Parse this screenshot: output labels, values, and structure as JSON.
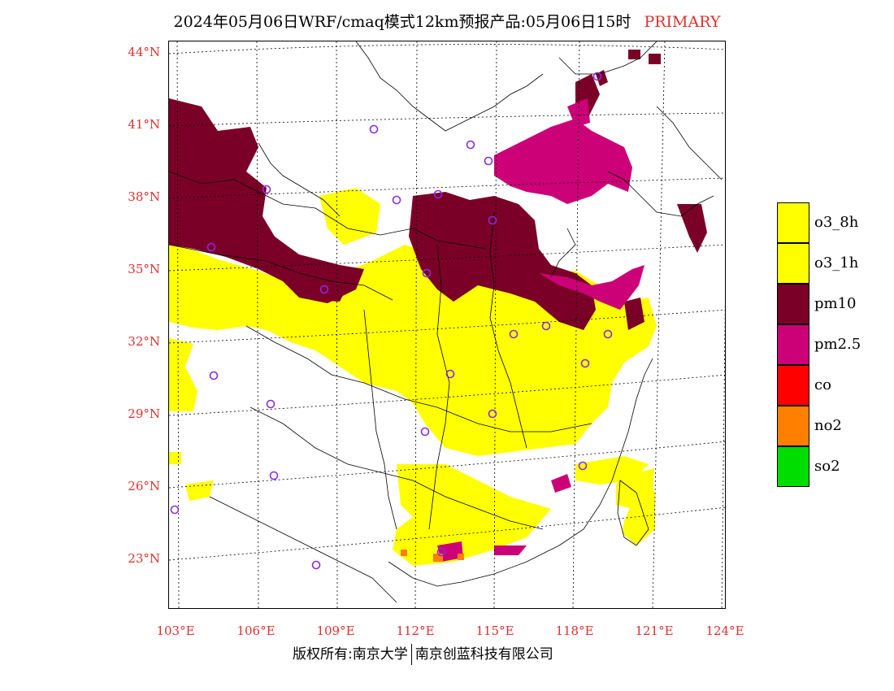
{
  "title": {
    "main": "2024年05月06日WRF/cmaq模式12km预报产品:05月06日15时",
    "tag": "PRIMARY"
  },
  "axes": {
    "latitude_labels": [
      "44°N",
      "41°N",
      "38°N",
      "35°N",
      "32°N",
      "29°N",
      "26°N",
      "23°N"
    ],
    "longitude_labels": [
      "103°E",
      "106°E",
      "109°E",
      "112°E",
      "115°E",
      "118°E",
      "121°E",
      "124°E"
    ]
  },
  "legend": {
    "items": [
      {
        "label": "o3_8h",
        "color": "#ffff00"
      },
      {
        "label": "o3_1h",
        "color": "#ffff00"
      },
      {
        "label": "pm10",
        "color": "#7a0028"
      },
      {
        "label": "pm2.5",
        "color": "#cc0077"
      },
      {
        "label": "co",
        "color": "#ff0000"
      },
      {
        "label": "no2",
        "color": "#ff7f00"
      },
      {
        "label": "so2",
        "color": "#00dd00"
      }
    ]
  },
  "footer": {
    "left": "版权所有:南京大学",
    "right": "南京创蓝科技有限公司"
  }
}
